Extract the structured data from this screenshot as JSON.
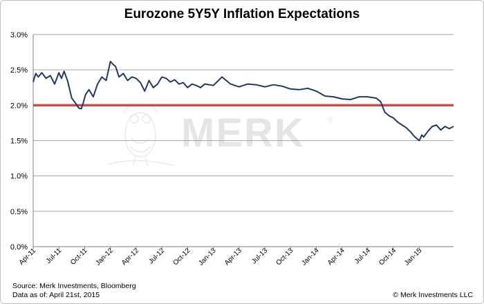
{
  "chart_data": {
    "type": "line",
    "title": "Eurozone 5Y5Y Inflation Expectations",
    "xlabel": "",
    "ylabel": "",
    "ylim": [
      0.0,
      3.0
    ],
    "y_ticks": [
      "0.0%",
      "0.5%",
      "1.0%",
      "1.5%",
      "2.0%",
      "2.5%",
      "3.0%"
    ],
    "x_ticks": [
      "Apr-11",
      "Jul-11",
      "Oct-11",
      "Jan-12",
      "Apr-12",
      "Jul-12",
      "Oct-12",
      "Jan-13",
      "Apr-13",
      "Jul-13",
      "Oct-13",
      "Jan-14",
      "Apr-14",
      "Jul-14",
      "Oct-14",
      "Jan-15"
    ],
    "x_range_months": [
      0,
      49
    ],
    "reference_line": {
      "value": 2.0,
      "color": "#c0504d"
    },
    "series": [
      {
        "name": "Eurozone 5Y5Y Inflation Expectations",
        "color": "#1f3864",
        "x": [
          0,
          0.3,
          0.6,
          1.0,
          1.5,
          2.0,
          2.5,
          3.0,
          3.3,
          3.6,
          4.0,
          4.5,
          5.0,
          5.3,
          5.6,
          5.8,
          6.1,
          6.5,
          7.0,
          7.5,
          8.0,
          8.5,
          9.0,
          9.3,
          9.6,
          10.0,
          10.5,
          11.0,
          11.5,
          12.0,
          12.5,
          13.0,
          13.5,
          14.0,
          14.5,
          15.0,
          15.5,
          16.0,
          16.5,
          17.0,
          17.5,
          18.0,
          18.5,
          19.0,
          19.5,
          20.0,
          21.0,
          22.0,
          23.0,
          24.0,
          25.0,
          26.0,
          27.0,
          28.0,
          29.0,
          30.0,
          31.0,
          32.0,
          33.0,
          34.0,
          35.0,
          36.0,
          37.0,
          38.0,
          39.0,
          40.0,
          40.5,
          41.0,
          41.5,
          42.0,
          42.5,
          43.0,
          43.5,
          44.0,
          44.5,
          45.0,
          45.3,
          45.5,
          46.0,
          46.5,
          47.0,
          47.5,
          48.0,
          48.5,
          49.0
        ],
        "values": [
          2.33,
          2.45,
          2.4,
          2.46,
          2.38,
          2.42,
          2.3,
          2.46,
          2.38,
          2.48,
          2.35,
          2.1,
          2.02,
          1.96,
          1.95,
          2.02,
          2.15,
          2.22,
          2.12,
          2.3,
          2.4,
          2.35,
          2.62,
          2.58,
          2.55,
          2.4,
          2.45,
          2.35,
          2.4,
          2.38,
          2.32,
          2.2,
          2.35,
          2.25,
          2.3,
          2.4,
          2.38,
          2.33,
          2.36,
          2.3,
          2.32,
          2.25,
          2.3,
          2.28,
          2.25,
          2.3,
          2.28,
          2.4,
          2.3,
          2.26,
          2.3,
          2.29,
          2.26,
          2.29,
          2.27,
          2.23,
          2.22,
          2.24,
          2.2,
          2.13,
          2.12,
          2.09,
          2.08,
          2.12,
          2.12,
          2.1,
          2.05,
          1.9,
          1.85,
          1.82,
          1.76,
          1.72,
          1.68,
          1.62,
          1.55,
          1.5,
          1.58,
          1.55,
          1.63,
          1.7,
          1.72,
          1.65,
          1.7,
          1.67,
          1.7
        ]
      }
    ]
  },
  "footer": {
    "source": "Source: Merk Investments, Bloomberg",
    "data_as_of": "Data as of: April 21st, 2015",
    "copyright": "© Merk Investments LLC"
  },
  "watermark": {
    "text": "MERK",
    "mark": "®"
  }
}
